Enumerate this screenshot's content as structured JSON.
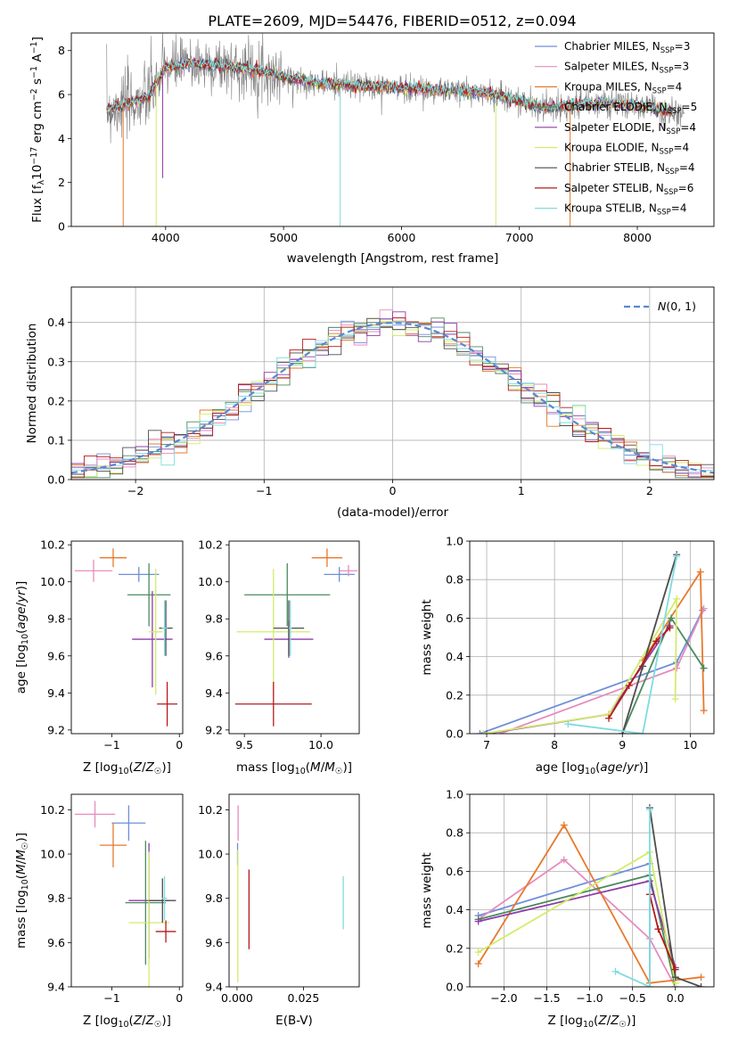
{
  "title": "PLATE=2609, MJD=54476, FIBERID=0512, z=0.094",
  "colors": {
    "chabrier_miles": "#6f8fd9",
    "salpeter_miles": "#e68bbd",
    "kroupa_miles": "#e8792b",
    "chabrier_elodie": "#4b8a5f",
    "salpeter_elodie": "#8e3ca8",
    "kroupa_elodie": "#d2ec6a",
    "chabrier_stelib": "#4d4d4d",
    "salpeter_stelib": "#b51a1a",
    "kroupa_stelib": "#7fdbe0",
    "data_gray": "#808080",
    "gauss": "#5b87d0",
    "grid": "#b0b0b0"
  },
  "chart_data": [
    {
      "id": "spectrum",
      "type": "line",
      "xlabel": "wavelength [Angstrom, rest frame]",
      "ylabel": "Flux [f_λ 10^-17 erg cm^-2 s^-1 A^-1]",
      "xlim": [
        3200,
        8650
      ],
      "ylim": [
        0,
        8.8
      ],
      "xticks": [
        4000,
        5000,
        6000,
        7000,
        8000
      ],
      "yticks": [
        0,
        2,
        4,
        6,
        8
      ],
      "grid": false,
      "legend_position": "top-right",
      "legend": [
        {
          "key": "chabrier_miles",
          "label": "Chabrier MILES, N",
          "n": "3"
        },
        {
          "key": "salpeter_miles",
          "label": "Salpeter MILES, N",
          "n": "3"
        },
        {
          "key": "kroupa_miles",
          "label": "Kroupa MILES, N",
          "n": "4"
        },
        {
          "key": "chabrier_elodie",
          "label": "Chabrier ELODIE, N",
          "n": "5"
        },
        {
          "key": "salpeter_elodie",
          "label": "Salpeter ELODIE, N",
          "n": "4"
        },
        {
          "key": "kroupa_elodie",
          "label": "Kroupa ELODIE, N",
          "n": "4"
        },
        {
          "key": "chabrier_stelib",
          "label": "Chabrier STELIB, N",
          "n": "4"
        },
        {
          "key": "salpeter_stelib",
          "label": "Salpeter STELIB, N",
          "n": "6"
        },
        {
          "key": "kroupa_stelib",
          "label": "Kroupa STELIB, N",
          "n": "4"
        }
      ],
      "continuum": [
        [
          3500,
          5.3
        ],
        [
          3700,
          5.6
        ],
        [
          3850,
          5.9
        ],
        [
          4000,
          7.2
        ],
        [
          4200,
          7.4
        ],
        [
          4500,
          7.3
        ],
        [
          4800,
          7.1
        ],
        [
          5000,
          6.8
        ],
        [
          5300,
          6.5
        ],
        [
          5600,
          6.4
        ],
        [
          6000,
          6.3
        ],
        [
          6300,
          6.2
        ],
        [
          6600,
          6.15
        ],
        [
          6800,
          6.0
        ],
        [
          7000,
          5.7
        ],
        [
          7200,
          5.4
        ],
        [
          7400,
          5.5
        ],
        [
          7700,
          5.6
        ],
        [
          8000,
          5.5
        ],
        [
          8300,
          5.2
        ],
        [
          8400,
          5.0
        ]
      ],
      "spikes": [
        {
          "x": 3640,
          "y": 0,
          "key": "kroupa_miles"
        },
        {
          "x": 3920,
          "y": 0,
          "key": "kroupa_elodie"
        },
        {
          "x": 3975,
          "y": 2.2,
          "key": "salpeter_elodie"
        },
        {
          "x": 5480,
          "y": 0,
          "key": "kroupa_stelib"
        },
        {
          "x": 6800,
          "y": 0,
          "key": "kroupa_elodie"
        },
        {
          "x": 7430,
          "y": 0,
          "key": "kroupa_miles"
        }
      ]
    },
    {
      "id": "residual-hist",
      "type": "line",
      "xlabel": "(data-model)/error",
      "ylabel": "Normed distribution",
      "xlim": [
        -2.5,
        2.5
      ],
      "ylim": [
        0,
        0.49
      ],
      "xticks": [
        -2,
        -1,
        0,
        1,
        2
      ],
      "yticks": [
        0.0,
        0.1,
        0.2,
        0.3,
        0.4
      ],
      "grid": true,
      "legend_position": "top-right",
      "gauss_label": "N(0,1)",
      "bin_width": 0.1
    },
    {
      "id": "age-vs-Z",
      "type": "scatter",
      "xlabel": "Z [log10(Z/Z☉)]",
      "ylabel": "age [log10(age/yr)]",
      "xlim": [
        -1.6,
        0.05
      ],
      "ylim": [
        9.18,
        10.22
      ],
      "xticks": [
        -1,
        0
      ],
      "yticks": [
        9.2,
        9.4,
        9.6,
        9.8,
        10.0,
        10.2
      ],
      "grid": false,
      "points": [
        {
          "key": "chabrier_miles",
          "x": -0.6,
          "xerr": 0.3,
          "y": 10.04,
          "yerr": 0.04
        },
        {
          "key": "salpeter_miles",
          "x": -1.27,
          "xerr": 0.28,
          "y": 10.06,
          "yerr": 0.06
        },
        {
          "key": "kroupa_miles",
          "x": -0.98,
          "xerr": 0.2,
          "y": 10.13,
          "yerr": 0.05
        },
        {
          "key": "chabrier_elodie",
          "x": -0.45,
          "xerr": 0.32,
          "y": 9.93,
          "yerr": 0.17
        },
        {
          "key": "salpeter_elodie",
          "x": -0.4,
          "xerr": 0.3,
          "y": 9.69,
          "yerr": 0.26
        },
        {
          "key": "kroupa_elodie",
          "x": -0.35,
          "xerr": 0.1,
          "y": 9.73,
          "yerr": 0.34
        },
        {
          "key": "chabrier_stelib",
          "x": -0.2,
          "xerr": 0.1,
          "y": 9.75,
          "yerr": 0.15
        },
        {
          "key": "salpeter_stelib",
          "x": -0.18,
          "xerr": 0.15,
          "y": 9.34,
          "yerr": 0.12
        },
        {
          "key": "kroupa_stelib",
          "x": -0.22,
          "xerr": 0.04,
          "y": 9.75,
          "yerr": 0.15
        }
      ]
    },
    {
      "id": "age-vs-mass",
      "type": "scatter",
      "xlabel": "mass [log10(M/M☉)]",
      "ylabel": "",
      "xlim": [
        9.4,
        10.25
      ],
      "ylim": [
        9.18,
        10.22
      ],
      "xticks": [
        9.5,
        10.0
      ],
      "yticks": [
        9.2,
        9.4,
        9.6,
        9.8,
        10.0,
        10.2
      ],
      "grid": false,
      "points": [
        {
          "key": "chabrier_miles",
          "x": 10.12,
          "xerr": 0.1,
          "y": 10.04,
          "yerr": 0.04
        },
        {
          "key": "salpeter_miles",
          "x": 10.18,
          "xerr": 0.06,
          "y": 10.06,
          "yerr": 0.03
        },
        {
          "key": "kroupa_miles",
          "x": 10.04,
          "xerr": 0.1,
          "y": 10.13,
          "yerr": 0.05
        },
        {
          "key": "chabrier_elodie",
          "x": 9.78,
          "xerr": 0.28,
          "y": 9.93,
          "yerr": 0.17
        },
        {
          "key": "salpeter_elodie",
          "x": 9.79,
          "xerr": 0.16,
          "y": 9.69,
          "yerr": 0.1
        },
        {
          "key": "kroupa_elodie",
          "x": 9.69,
          "xerr": 0.24,
          "y": 9.73,
          "yerr": 0.34
        },
        {
          "key": "chabrier_stelib",
          "x": 9.79,
          "xerr": 0.1,
          "y": 9.75,
          "yerr": 0.15
        },
        {
          "key": "salpeter_stelib",
          "x": 9.69,
          "xerr": 0.25,
          "y": 9.34,
          "yerr": 0.12
        },
        {
          "key": "kroupa_stelib",
          "x": 9.8,
          "xerr": 0.01,
          "y": 9.75,
          "yerr": 0.15
        }
      ]
    },
    {
      "id": "weight-vs-age",
      "type": "line",
      "xlabel": "age [log10(age/yr)]",
      "ylabel": "mass weight",
      "xlim": [
        6.75,
        10.35
      ],
      "ylim": [
        0,
        1.0
      ],
      "xticks": [
        7,
        8,
        9,
        10
      ],
      "yticks": [
        0.0,
        0.2,
        0.4,
        0.6,
        0.8,
        1.0
      ],
      "grid": true,
      "series": [
        {
          "key": "chabrier_miles",
          "points": [
            [
              6.9,
              0.0
            ],
            [
              9.8,
              0.37
            ],
            [
              10.18,
              0.64
            ]
          ]
        },
        {
          "key": "salpeter_miles",
          "points": [
            [
              7.2,
              0.0
            ],
            [
              9.8,
              0.34
            ],
            [
              10.2,
              0.65
            ]
          ]
        },
        {
          "key": "kroupa_miles",
          "points": [
            [
              9.3,
              0.38
            ],
            [
              10.15,
              0.84
            ],
            [
              10.2,
              0.12
            ]
          ]
        },
        {
          "key": "chabrier_elodie",
          "points": [
            [
              9.0,
              0.0
            ],
            [
              9.72,
              0.6
            ],
            [
              10.2,
              0.34
            ]
          ]
        },
        {
          "key": "salpeter_elodie",
          "points": [
            [
              7.0,
              0.0
            ],
            [
              8.8,
              0.1
            ],
            [
              9.7,
              0.56
            ]
          ]
        },
        {
          "key": "kroupa_elodie",
          "points": [
            [
              6.95,
              0.0
            ],
            [
              8.8,
              0.1
            ],
            [
              9.8,
              0.7
            ],
            [
              9.78,
              0.18
            ]
          ]
        },
        {
          "key": "chabrier_stelib",
          "points": [
            [
              9.0,
              0.0
            ],
            [
              9.8,
              0.93
            ],
            [
              9.3,
              0.35
            ]
          ]
        },
        {
          "key": "salpeter_stelib",
          "points": [
            [
              8.8,
              0.08
            ],
            [
              9.1,
              0.25
            ],
            [
              9.5,
              0.48
            ],
            [
              9.7,
              0.55
            ]
          ]
        },
        {
          "key": "kroupa_stelib",
          "points": [
            [
              8.2,
              0.05
            ],
            [
              9.3,
              0.0
            ],
            [
              9.8,
              0.92
            ]
          ]
        }
      ]
    },
    {
      "id": "mass-vs-Z",
      "type": "scatter",
      "xlabel": "Z [log10(Z/Z☉)]",
      "ylabel": "mass [log10(M/M☉)]",
      "xlim": [
        -1.6,
        0.05
      ],
      "ylim": [
        9.4,
        10.27
      ],
      "xticks": [
        -1,
        0
      ],
      "yticks": [
        9.4,
        9.6,
        9.8,
        10.0,
        10.2
      ],
      "grid": false,
      "points": [
        {
          "key": "chabrier_miles",
          "x": -0.75,
          "xerr": 0.25,
          "y": 10.14,
          "yerr": 0.08
        },
        {
          "key": "salpeter_miles",
          "x": -1.25,
          "xerr": 0.3,
          "y": 10.18,
          "yerr": 0.06
        },
        {
          "key": "kroupa_miles",
          "x": -0.98,
          "xerr": 0.2,
          "y": 10.04,
          "yerr": 0.1
        },
        {
          "key": "chabrier_elodie",
          "x": -0.5,
          "xerr": 0.3,
          "y": 9.78,
          "yerr": 0.28
        },
        {
          "key": "salpeter_elodie",
          "x": -0.45,
          "xerr": 0.3,
          "y": 9.79,
          "yerr": 0.26
        },
        {
          "key": "kroupa_elodie",
          "x": -0.45,
          "xerr": 0.3,
          "y": 9.69,
          "yerr": 0.32
        },
        {
          "key": "chabrier_stelib",
          "x": -0.25,
          "xerr": 0.2,
          "y": 9.79,
          "yerr": 0.1
        },
        {
          "key": "salpeter_stelib",
          "x": -0.2,
          "xerr": 0.15,
          "y": 9.65,
          "yerr": 0.05
        },
        {
          "key": "kroupa_stelib",
          "x": -0.22,
          "xerr": 0.04,
          "y": 9.8,
          "yerr": 0.1
        }
      ]
    },
    {
      "id": "mass-vs-ebv",
      "type": "scatter",
      "xlabel": "E(B-V)",
      "ylabel": "",
      "xlim": [
        -0.003,
        0.046
      ],
      "ylim": [
        9.4,
        10.27
      ],
      "xticks": [
        0.0,
        0.025
      ],
      "xticklabels": [
        "0.000",
        "0.025"
      ],
      "yticks": [
        9.4,
        9.6,
        9.8,
        10.0,
        10.2
      ],
      "grid": false,
      "points": [
        {
          "key": "salpeter_miles",
          "x": 0.0004,
          "xerr": 0,
          "y": 10.14,
          "yerr": 0.08
        },
        {
          "key": "chabrier_miles",
          "x": 0.0002,
          "xerr": 0,
          "y": 10.0,
          "yerr": 0.05
        },
        {
          "key": "kroupa_elodie",
          "x": 0.0003,
          "xerr": 0,
          "y": 9.72,
          "yerr": 0.3
        },
        {
          "key": "salpeter_stelib",
          "x": 0.0045,
          "xerr": 0,
          "y": 9.75,
          "yerr": 0.18
        },
        {
          "key": "kroupa_stelib",
          "x": 0.04,
          "xerr": 0,
          "y": 9.78,
          "yerr": 0.12
        }
      ]
    },
    {
      "id": "weight-vs-Z",
      "type": "line",
      "xlabel": "Z [log10(Z/Z☉)]",
      "ylabel": "mass weight",
      "xlim": [
        -2.4,
        0.45
      ],
      "ylim": [
        0,
        1.0
      ],
      "xticks": [
        -2.0,
        -1.5,
        -1.0,
        -0.5,
        0.0
      ],
      "yticks": [
        0.0,
        0.2,
        0.4,
        0.6,
        0.8,
        1.0
      ],
      "grid": true,
      "series": [
        {
          "key": "chabrier_miles",
          "points": [
            [
              -2.3,
              0.37
            ],
            [
              -0.3,
              0.64
            ],
            [
              -0.3,
              0.0
            ]
          ]
        },
        {
          "key": "salpeter_miles",
          "points": [
            [
              -2.3,
              0.35
            ],
            [
              -1.3,
              0.66
            ],
            [
              -0.3,
              0.25
            ],
            [
              0.0,
              0.0
            ]
          ]
        },
        {
          "key": "kroupa_miles",
          "points": [
            [
              -2.3,
              0.12
            ],
            [
              -1.3,
              0.84
            ],
            [
              -0.3,
              0.02
            ],
            [
              0.3,
              0.05
            ]
          ]
        },
        {
          "key": "chabrier_elodie",
          "points": [
            [
              -2.3,
              0.35
            ],
            [
              -0.3,
              0.58
            ],
            [
              0.0,
              0.0
            ]
          ]
        },
        {
          "key": "salpeter_elodie",
          "points": [
            [
              -2.3,
              0.34
            ],
            [
              -0.3,
              0.55
            ],
            [
              0.0,
              0.1
            ]
          ]
        },
        {
          "key": "kroupa_elodie",
          "points": [
            [
              -2.3,
              0.18
            ],
            [
              -0.3,
              0.7
            ],
            [
              0.0,
              0.02
            ]
          ]
        },
        {
          "key": "chabrier_stelib",
          "points": [
            [
              -0.3,
              0.93
            ],
            [
              0.0,
              0.05
            ],
            [
              0.3,
              0.0
            ]
          ]
        },
        {
          "key": "salpeter_stelib",
          "points": [
            [
              -0.3,
              0.48
            ],
            [
              -0.2,
              0.3
            ],
            [
              0.0,
              0.09
            ]
          ]
        },
        {
          "key": "kroupa_stelib",
          "points": [
            [
              -0.7,
              0.08
            ],
            [
              -0.3,
              0.0
            ],
            [
              -0.3,
              0.92
            ]
          ]
        }
      ]
    }
  ]
}
